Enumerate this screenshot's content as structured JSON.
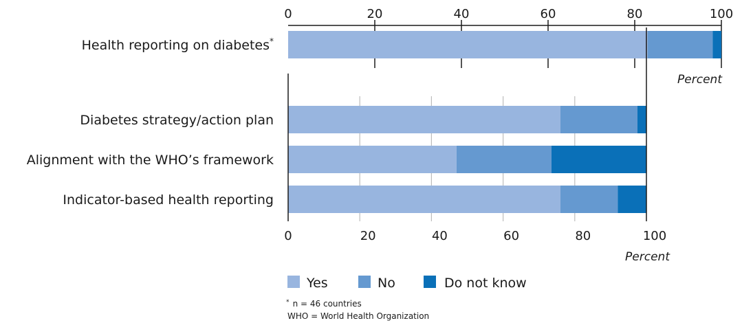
{
  "chart_data": [
    {
      "type": "bar",
      "stacked": true,
      "orientation": "horizontal",
      "categories": [
        "Health reporting on diabetes"
      ],
      "category_superscripts": [
        "*"
      ],
      "series": [
        {
          "name": "Yes",
          "values": [
            83
          ]
        },
        {
          "name": "No",
          "values": [
            15
          ]
        },
        {
          "name": "Do not know",
          "values": [
            2
          ]
        }
      ],
      "xlim": [
        0,
        100
      ],
      "xticks": [
        "0",
        "20",
        "40",
        "60",
        "80",
        "100"
      ],
      "xlabel": "Percent",
      "axis_position": "top",
      "grid": false
    },
    {
      "type": "bar",
      "stacked": true,
      "orientation": "horizontal",
      "categories": [
        "Diabetes strategy/action plan",
        "Alignment with the WHO’s framework",
        "Indicator-based health reporting"
      ],
      "category_superscripts": [
        "",
        "",
        ""
      ],
      "series": [
        {
          "name": "Yes",
          "values": [
            76,
            47,
            76
          ]
        },
        {
          "name": "No",
          "values": [
            21.5,
            26.5,
            16
          ]
        },
        {
          "name": "Do not know",
          "values": [
            2.5,
            26.5,
            8
          ]
        }
      ],
      "xlim": [
        0,
        100
      ],
      "xticks": [
        "0",
        "20",
        "40",
        "60",
        "80",
        "100"
      ],
      "xlabel": "Percent",
      "axis_position": "bottom",
      "grid": true
    }
  ],
  "colors": {
    "Yes": "#98b5df",
    "No": "#6599d0",
    "Do not know": "#0a70b8",
    "axis": "#1a1a1a",
    "grid": "#bcbcbc",
    "separator": "#ffffff"
  },
  "legend": {
    "placement": "bottom",
    "items": [
      "Yes",
      "No",
      "Do not know"
    ]
  },
  "footnote": {
    "sup": "*",
    "n_line": "n = 46 countries",
    "abbrev": "WHO = World Health Organization"
  }
}
